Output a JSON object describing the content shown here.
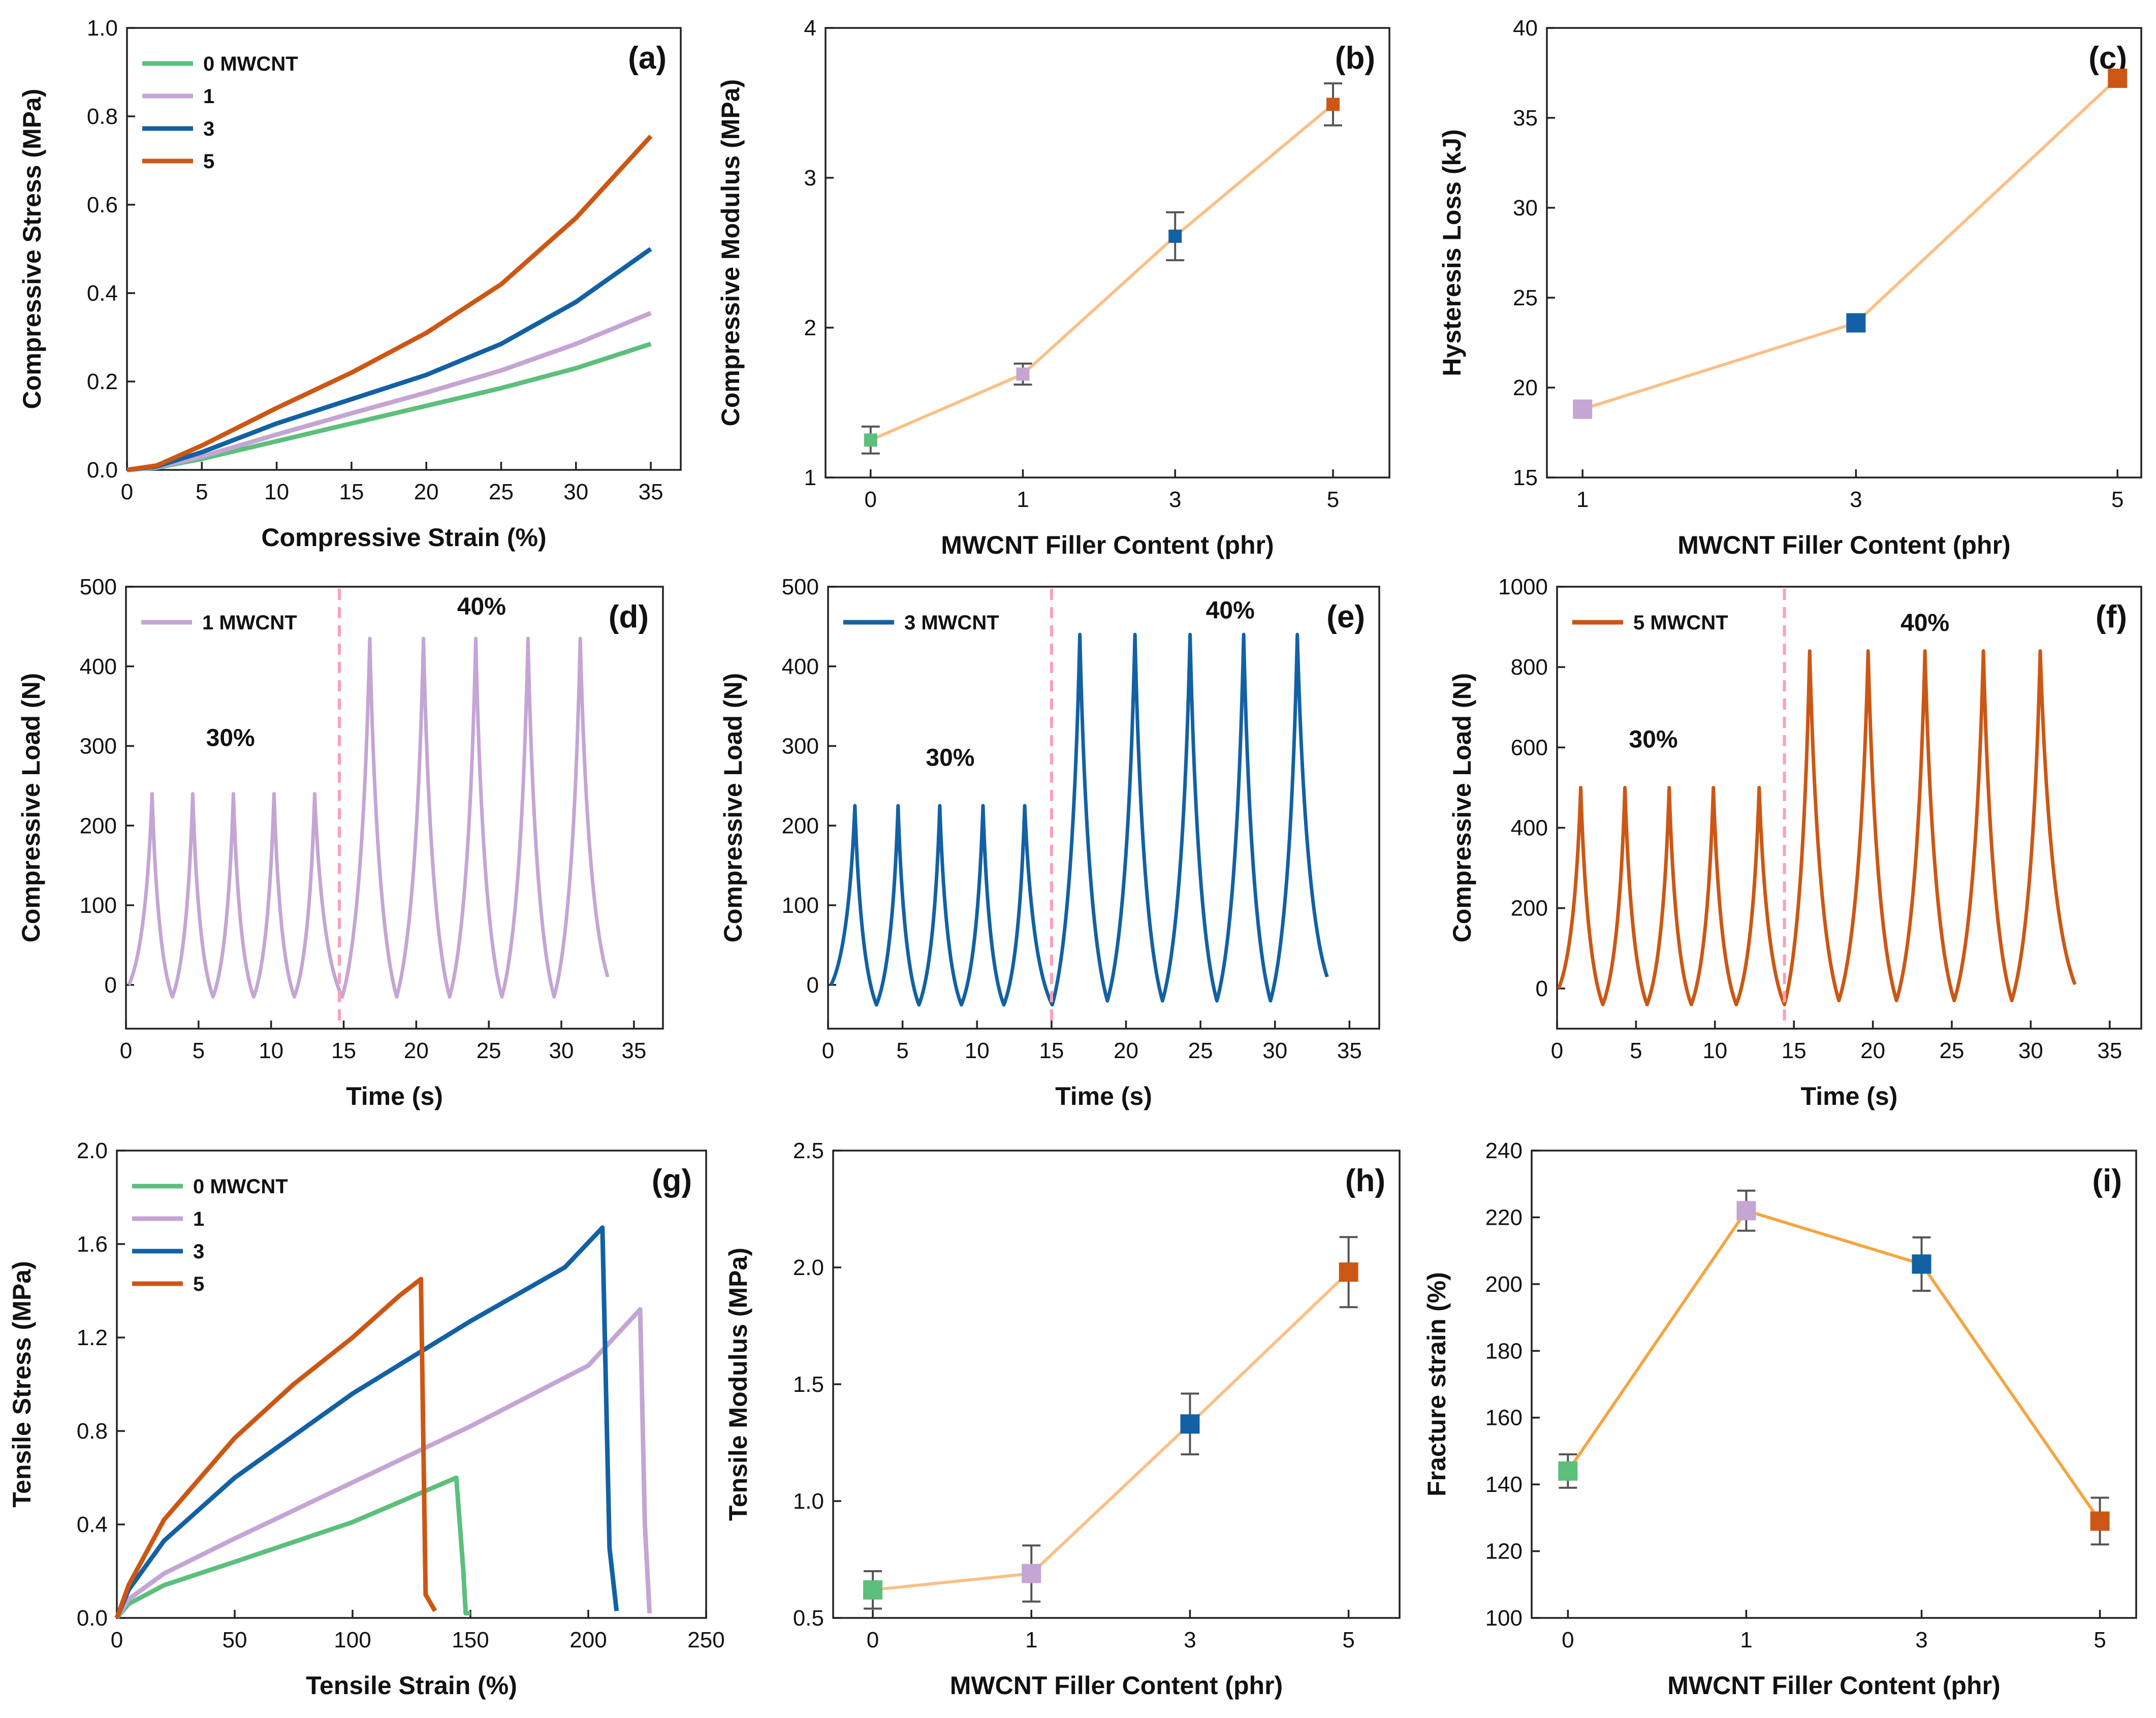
{
  "colors": {
    "mw0": "#5cbf7c",
    "mw1": "#c4a5d4",
    "mw3": "#1261a4",
    "mw5": "#cc5714",
    "connector": "#fbbf86",
    "connector_i": "#f5a540",
    "divider": "#ff9fb7",
    "errorbar": "#555555"
  },
  "chart_data": [
    {
      "id": "a",
      "panel_label": "(a)",
      "type": "line",
      "xlabel": "Compressive Strain (%)",
      "ylabel": "Compressive Stress (MPa)",
      "xlim": [
        0,
        37
      ],
      "ylim": [
        0,
        1.0
      ],
      "xticks": [
        "0",
        "5",
        "10",
        "15",
        "20",
        "25",
        "30",
        "35"
      ],
      "xtick_values": [
        0,
        5,
        10,
        15,
        20,
        25,
        30,
        35
      ],
      "yticks": [
        "0.0",
        "0.2",
        "0.4",
        "0.6",
        "0.8",
        "1.0"
      ],
      "ytick_values": [
        0,
        0.2,
        0.4,
        0.6,
        0.8,
        1.0
      ],
      "legend": [
        "0 MWCNT",
        "1",
        "3",
        "5"
      ],
      "legend_colors": [
        "mw0",
        "mw1",
        "mw3",
        "mw5"
      ],
      "series": [
        {
          "name": "0 MWCNT",
          "color": "mw0",
          "x": [
            0,
            2,
            5,
            10,
            15,
            20,
            25,
            30,
            35
          ],
          "y": [
            0,
            0.005,
            0.025,
            0.065,
            0.105,
            0.145,
            0.185,
            0.23,
            0.285
          ]
        },
        {
          "name": "1",
          "color": "mw1",
          "x": [
            0,
            2,
            5,
            10,
            15,
            20,
            25,
            30,
            35
          ],
          "y": [
            0,
            0.006,
            0.03,
            0.08,
            0.128,
            0.175,
            0.225,
            0.285,
            0.355
          ]
        },
        {
          "name": "3",
          "color": "mw3",
          "x": [
            0,
            2,
            5,
            10,
            15,
            20,
            25,
            30,
            35
          ],
          "y": [
            0,
            0.008,
            0.04,
            0.105,
            0.16,
            0.215,
            0.285,
            0.38,
            0.5
          ]
        },
        {
          "name": "5",
          "color": "mw5",
          "x": [
            0,
            2,
            5,
            10,
            15,
            20,
            25,
            30,
            35
          ],
          "y": [
            0,
            0.01,
            0.055,
            0.14,
            0.22,
            0.31,
            0.42,
            0.57,
            0.755
          ]
        }
      ]
    },
    {
      "id": "b",
      "panel_label": "(b)",
      "type": "scatter",
      "xlabel": "MWCNT Filler Content (phr)",
      "ylabel": "Compressive Modulus (MPa)",
      "ylim": [
        1,
        4
      ],
      "xticks": [
        "0",
        "1",
        "3",
        "5"
      ],
      "yticks": [
        "1",
        "2",
        "3",
        "4"
      ],
      "ytick_values": [
        1,
        2,
        3,
        4
      ],
      "points": [
        {
          "x": "0",
          "y": 1.25,
          "err": 0.09,
          "color": "mw0"
        },
        {
          "x": "1",
          "y": 1.69,
          "err": 0.07,
          "color": "mw1"
        },
        {
          "x": "3",
          "y": 2.61,
          "err": 0.16,
          "color": "mw3"
        },
        {
          "x": "5",
          "y": 3.49,
          "err": 0.14,
          "color": "mw5"
        }
      ]
    },
    {
      "id": "c",
      "panel_label": "(c)",
      "type": "scatter",
      "xlabel": "MWCNT Filler Content (phr)",
      "ylabel": "Hysteresis  Loss (kJ)",
      "ylim": [
        15,
        40
      ],
      "xticks": [
        "1",
        "3",
        "5"
      ],
      "yticks": [
        "15",
        "20",
        "25",
        "30",
        "35",
        "40"
      ],
      "ytick_values": [
        15,
        20,
        25,
        30,
        35,
        40
      ],
      "points": [
        {
          "x": "1",
          "y": 18.8,
          "err": 0,
          "color": "mw1"
        },
        {
          "x": "3",
          "y": 23.6,
          "err": 0,
          "color": "mw3"
        },
        {
          "x": "5",
          "y": 37.2,
          "err": 0,
          "color": "mw5"
        }
      ]
    },
    {
      "id": "d",
      "panel_label": "(d)",
      "type": "line",
      "xlabel": "Time (s)",
      "ylabel": "Compressive Load (N)",
      "xlim": [
        0,
        37
      ],
      "ylim": [
        -55,
        500
      ],
      "xticks": [
        "0",
        "5",
        "10",
        "15",
        "20",
        "25",
        "30",
        "35"
      ],
      "xtick_values": [
        0,
        5,
        10,
        15,
        20,
        25,
        30,
        35
      ],
      "yticks": [
        "0",
        "100",
        "200",
        "300",
        "400",
        "500"
      ],
      "ytick_values": [
        0,
        100,
        200,
        300,
        400,
        500
      ],
      "legend": [
        "1 MWCNT"
      ],
      "legend_colors": [
        "mw1"
      ],
      "series_color": "mw1",
      "divider_time": 14.7,
      "annotations": [
        "30%",
        "40%"
      ],
      "annotation_anchor": [
        [
          7.2,
          300
        ],
        [
          24.5,
          465
        ]
      ],
      "cycles_30": {
        "peak_times": [
          1.8,
          4.6,
          7.4,
          10.2,
          13.0
        ],
        "peak": 240,
        "trough": -15
      },
      "cycles_40": {
        "peak_times": [
          16.8,
          20.5,
          24.1,
          27.7,
          31.3
        ],
        "peak": 435,
        "trough": -15
      },
      "start_time": 0.2,
      "end_time": 33.2
    },
    {
      "id": "e",
      "panel_label": "(e)",
      "type": "line",
      "xlabel": "Time (s)",
      "ylabel": "Compressive Load (N)",
      "xlim": [
        0,
        37
      ],
      "ylim": [
        -55,
        500
      ],
      "xticks": [
        "0",
        "5",
        "10",
        "15",
        "20",
        "25",
        "30",
        "35"
      ],
      "xtick_values": [
        0,
        5,
        10,
        15,
        20,
        25,
        30,
        35
      ],
      "yticks": [
        "0",
        "100",
        "200",
        "300",
        "400",
        "500"
      ],
      "ytick_values": [
        0,
        100,
        200,
        300,
        400,
        500
      ],
      "legend": [
        "3 MWCNT"
      ],
      "legend_colors": [
        "mw3"
      ],
      "series_color": "mw3",
      "divider_time": 15.0,
      "annotations": [
        "30%",
        "40%"
      ],
      "annotation_anchor": [
        [
          8.2,
          275
        ],
        [
          27.0,
          460
        ]
      ],
      "cycles_30": {
        "peak_times": [
          1.8,
          4.7,
          7.5,
          10.4,
          13.2
        ],
        "peak": 225,
        "trough": -25
      },
      "cycles_40": {
        "peak_times": [
          16.9,
          20.6,
          24.3,
          27.9,
          31.5
        ],
        "peak": 440,
        "trough": -20
      },
      "start_time": 0.2,
      "end_time": 33.5
    },
    {
      "id": "f",
      "panel_label": "(f)",
      "type": "line",
      "xlabel": "Time (s)",
      "ylabel": "Compressive Load (N)",
      "xlim": [
        0,
        37
      ],
      "ylim": [
        -100,
        1000
      ],
      "xticks": [
        "0",
        "5",
        "10",
        "15",
        "20",
        "25",
        "30",
        "35"
      ],
      "xtick_values": [
        0,
        5,
        10,
        15,
        20,
        25,
        30,
        35
      ],
      "yticks": [
        "0",
        "200",
        "400",
        "600",
        "800",
        "1000"
      ],
      "ytick_values": [
        0,
        200,
        400,
        600,
        800,
        1000
      ],
      "legend": [
        "5 MWCNT"
      ],
      "legend_colors": [
        "mw5"
      ],
      "series_color": "mw5",
      "divider_time": 14.4,
      "annotations": [
        "30%",
        "40%"
      ],
      "annotation_anchor": [
        [
          6.1,
          600
        ],
        [
          23.3,
          890
        ]
      ],
      "cycles_30": {
        "peak_times": [
          1.5,
          4.3,
          7.1,
          9.9,
          12.8
        ],
        "peak": 500,
        "trough": -40
      },
      "cycles_40": {
        "peak_times": [
          16.0,
          19.7,
          23.3,
          27.0,
          30.6
        ],
        "peak": 840,
        "trough": -30
      },
      "start_time": 0.1,
      "end_time": 32.8
    },
    {
      "id": "g",
      "panel_label": "(g)",
      "type": "line",
      "xlabel": "Tensile Strain (%)",
      "ylabel": "Tensile Stress (MPa)",
      "xlim": [
        0,
        250
      ],
      "ylim": [
        0,
        2.0
      ],
      "xticks": [
        "0",
        "50",
        "100",
        "150",
        "200",
        "250"
      ],
      "xtick_values": [
        0,
        50,
        100,
        150,
        200,
        250
      ],
      "yticks": [
        "0.0",
        "0.4",
        "0.8",
        "1.2",
        "1.6",
        "2.0"
      ],
      "ytick_values": [
        0,
        0.4,
        0.8,
        1.2,
        1.6,
        2.0
      ],
      "legend": [
        "0 MWCNT",
        "1",
        "3",
        "5"
      ],
      "legend_colors": [
        "mw0",
        "mw1",
        "mw3",
        "mw5"
      ],
      "series": [
        {
          "name": "0 MWCNT",
          "color": "mw0",
          "x": [
            0,
            5,
            20,
            50,
            100,
            144,
            147,
            148,
            150
          ],
          "y": [
            0,
            0.06,
            0.14,
            0.24,
            0.41,
            0.6,
            0.2,
            0.02,
            0.02
          ]
        },
        {
          "name": "1",
          "color": "mw1",
          "x": [
            0,
            5,
            20,
            50,
            100,
            150,
            200,
            222,
            224,
            226
          ],
          "y": [
            0,
            0.08,
            0.19,
            0.34,
            0.58,
            0.82,
            1.08,
            1.32,
            0.4,
            0.02
          ]
        },
        {
          "name": "3",
          "color": "mw3",
          "x": [
            0,
            5,
            20,
            50,
            100,
            150,
            190,
            206,
            209,
            212
          ],
          "y": [
            0,
            0.12,
            0.33,
            0.6,
            0.96,
            1.27,
            1.5,
            1.67,
            0.3,
            0.03
          ]
        },
        {
          "name": "5",
          "color": "mw5",
          "x": [
            0,
            5,
            20,
            50,
            75,
            100,
            120,
            129,
            131,
            135
          ],
          "y": [
            0,
            0.14,
            0.42,
            0.77,
            1.0,
            1.2,
            1.38,
            1.45,
            0.1,
            0.03
          ]
        }
      ]
    },
    {
      "id": "h",
      "panel_label": "(h)",
      "type": "scatter",
      "xlabel": "MWCNT Filler Content (phr)",
      "ylabel": "Tensile Modulus (MPa)",
      "ylim": [
        0.5,
        2.5
      ],
      "xticks": [
        "0",
        "1",
        "3",
        "5"
      ],
      "yticks": [
        "0.5",
        "1.0",
        "1.5",
        "2.0",
        "2.5"
      ],
      "ytick_values": [
        0.5,
        1.0,
        1.5,
        2.0,
        2.5
      ],
      "points": [
        {
          "x": "0",
          "y": 0.62,
          "err": 0.08,
          "color": "mw0"
        },
        {
          "x": "1",
          "y": 0.69,
          "err": 0.12,
          "color": "mw1"
        },
        {
          "x": "3",
          "y": 1.33,
          "err": 0.13,
          "color": "mw3"
        },
        {
          "x": "5",
          "y": 1.98,
          "err": 0.15,
          "color": "mw5"
        }
      ]
    },
    {
      "id": "i",
      "panel_label": "(i)",
      "type": "scatter",
      "xlabel": "MWCNT Filler Content (phr)",
      "ylabel": "Fracture strain (%)",
      "ylim": [
        100,
        240
      ],
      "xticks": [
        "0",
        "1",
        "3",
        "5"
      ],
      "yticks": [
        "100",
        "120",
        "140",
        "160",
        "180",
        "200",
        "220",
        "240"
      ],
      "ytick_values": [
        100,
        120,
        140,
        160,
        180,
        200,
        220,
        240
      ],
      "points": [
        {
          "x": "0",
          "y": 144,
          "err": 5,
          "color": "mw0"
        },
        {
          "x": "1",
          "y": 222,
          "err": 6,
          "color": "mw1"
        },
        {
          "x": "3",
          "y": 206,
          "err": 8,
          "color": "mw3"
        },
        {
          "x": "5",
          "y": 129,
          "err": 7,
          "color": "mw5"
        }
      ]
    }
  ]
}
